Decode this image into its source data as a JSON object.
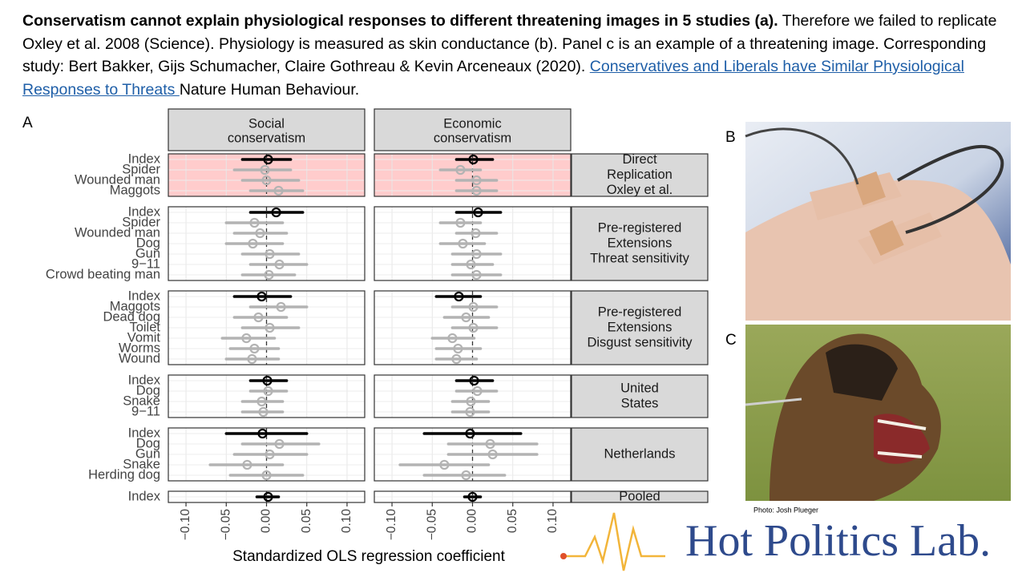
{
  "caption": {
    "bold": "Conservatism cannot explain physiological responses to different threatening images in 5 studies (a).",
    "text": " Therefore we failed to replicate Oxley et al. 2008 (Science). Physiology is measured as skin conductance (b). Panel c is an example of a threatening image. Corresponding study: Bert Bakker, Gijs Schumacher, Claire Gothreau & Kevin Arceneaux (2020). ",
    "link": "Conservatives and Liberals have Similar Physiological Responses to Threats ",
    "tail": "Nature Human Behaviour."
  },
  "panel_labels": [
    "A",
    "B",
    "C"
  ],
  "photo_credit": "Photo: Josh Plueger",
  "logo": "Hot Politics Lab.",
  "chart_data": {
    "type": "forest",
    "x_label": "Standardized OLS regression coefficient",
    "xlim": [
      -0.11,
      0.11
    ],
    "xticks": [
      {
        "value": -0.1,
        "label": "−0.10"
      },
      {
        "value": -0.05,
        "label": "−0.05"
      },
      {
        "value": 0,
        "label": "0.00"
      },
      {
        "value": 0.05,
        "label": "0.05"
      },
      {
        "value": 0.1,
        "label": "0.10"
      }
    ],
    "grid": true,
    "color": "#b3b3b3",
    "highlight_color": "#000000",
    "columns": [
      [
        "Social",
        "conservatism"
      ],
      [
        "Economic",
        "conservatism"
      ]
    ],
    "groups": [
      {
        "label": [
          "Direct",
          "Replication",
          "Oxley et al."
        ],
        "panel_fill": "#ffcccc",
        "items": [
          "Index",
          "Spider",
          "Wounded man",
          "Maggots"
        ],
        "panels": [
          {
            "values": [
              0.002,
              -0.002,
              0.0,
              0.015
            ],
            "lower": [
              -0.03,
              -0.04,
              -0.03,
              -0.02
            ],
            "upper": [
              0.03,
              0.03,
              0.04,
              0.045
            ]
          },
          {
            "values": [
              0.001,
              -0.015,
              0.005,
              0.005
            ],
            "lower": [
              -0.02,
              -0.04,
              -0.02,
              -0.02
            ],
            "upper": [
              0.025,
              0.01,
              0.03,
              0.03
            ]
          }
        ]
      },
      {
        "label": [
          "Pre-registered",
          "Extensions",
          "Threat sensitivity"
        ],
        "items": [
          "Index",
          "Spider",
          "Wounded man",
          "Dog",
          "Gun",
          "9−11",
          "Crowd beating man"
        ],
        "panels": [
          {
            "values": [
              0.012,
              -0.015,
              -0.008,
              -0.017,
              0.004,
              0.016,
              0.003
            ],
            "lower": [
              -0.02,
              -0.05,
              -0.04,
              -0.05,
              -0.03,
              -0.02,
              -0.03
            ],
            "upper": [
              0.045,
              0.02,
              0.025,
              0.02,
              0.04,
              0.05,
              0.035
            ]
          },
          {
            "values": [
              0.007,
              -0.015,
              0.004,
              -0.012,
              0.005,
              -0.002,
              0.005
            ],
            "lower": [
              -0.02,
              -0.04,
              -0.02,
              -0.04,
              -0.025,
              -0.025,
              -0.025
            ],
            "upper": [
              0.035,
              0.01,
              0.03,
              0.015,
              0.035,
              0.025,
              0.035
            ]
          }
        ]
      },
      {
        "label": [
          "Pre-registered",
          "Extensions",
          "Disgust sensitivity"
        ],
        "items": [
          "Index",
          "Maggots",
          "Dead dog",
          "Toilet",
          "Vomit",
          "Worms",
          "Wound"
        ],
        "panels": [
          {
            "values": [
              -0.006,
              0.018,
              -0.01,
              0.004,
              -0.025,
              -0.015,
              -0.018
            ],
            "lower": [
              -0.04,
              -0.02,
              -0.04,
              -0.03,
              -0.055,
              -0.045,
              -0.05
            ],
            "upper": [
              0.03,
              0.05,
              0.025,
              0.04,
              0.01,
              0.015,
              0.015
            ]
          },
          {
            "values": [
              -0.017,
              0.001,
              -0.008,
              0.001,
              -0.025,
              -0.018,
              -0.02
            ],
            "lower": [
              -0.045,
              -0.025,
              -0.035,
              -0.025,
              -0.05,
              -0.045,
              -0.045
            ],
            "upper": [
              0.01,
              0.03,
              0.02,
              0.03,
              0.002,
              0.01,
              0.005
            ]
          }
        ]
      },
      {
        "label": [
          "United",
          "States"
        ],
        "items": [
          "Index",
          "Dog",
          "Snake",
          "9−11"
        ],
        "panels": [
          {
            "values": [
              0.001,
              0.002,
              -0.006,
              -0.004
            ],
            "lower": [
              -0.02,
              -0.02,
              -0.03,
              -0.03
            ],
            "upper": [
              0.025,
              0.025,
              0.02,
              0.02
            ]
          },
          {
            "values": [
              0.002,
              0.006,
              -0.002,
              -0.003
            ],
            "lower": [
              -0.02,
              -0.02,
              -0.025,
              -0.025
            ],
            "upper": [
              0.025,
              0.03,
              0.02,
              0.02
            ]
          }
        ]
      },
      {
        "label": [
          "Netherlands"
        ],
        "items": [
          "Index",
          "Dog",
          "Gun",
          "Snake",
          "Herding dog"
        ],
        "panels": [
          {
            "values": [
              -0.005,
              0.016,
              0.004,
              -0.024,
              0.0
            ],
            "lower": [
              -0.05,
              -0.03,
              -0.04,
              -0.07,
              -0.045
            ],
            "upper": [
              0.05,
              0.065,
              0.05,
              0.02,
              0.045
            ]
          },
          {
            "values": [
              -0.003,
              0.022,
              0.025,
              -0.035,
              -0.008
            ],
            "lower": [
              -0.06,
              -0.03,
              -0.03,
              -0.09,
              -0.06
            ],
            "upper": [
              0.06,
              0.08,
              0.08,
              0.02,
              0.04
            ]
          }
        ]
      },
      {
        "label": [
          "Pooled"
        ],
        "items": [
          "Index"
        ],
        "panels": [
          {
            "values": [
              0.002
            ],
            "lower": [
              -0.012
            ],
            "upper": [
              0.015
            ]
          },
          {
            "values": [
              0.0
            ],
            "lower": [
              -0.01
            ],
            "upper": [
              0.01
            ]
          }
        ]
      }
    ]
  }
}
